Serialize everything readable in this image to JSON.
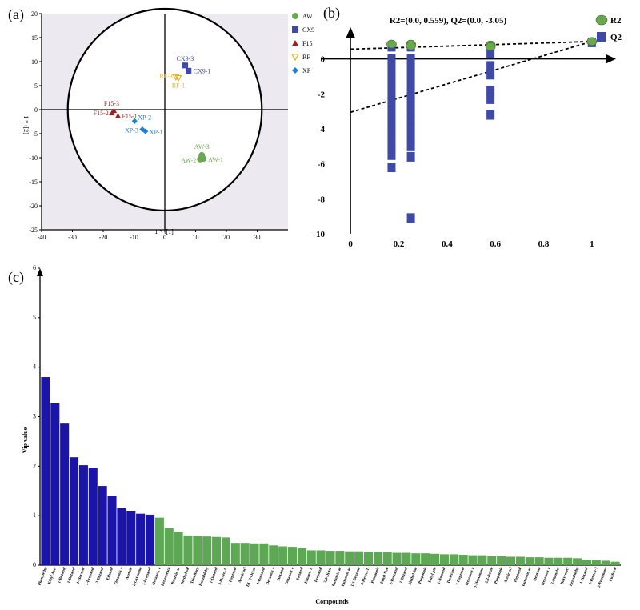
{
  "panels": {
    "a": "(a)",
    "b": "(b)",
    "c": "(c)"
  },
  "chart_data": [
    {
      "type": "scatter",
      "id": "a",
      "xlabel": "1 * t[1]",
      "ylabel": "1 * t[2]",
      "xlim": [
        -40,
        40
      ],
      "ylim": [
        -25,
        20
      ],
      "xticks": [
        -40,
        -30,
        -20,
        -10,
        0,
        10,
        20,
        30
      ],
      "yticks": [
        -25,
        -20,
        -15,
        -10,
        -5,
        0,
        5,
        10,
        15,
        20
      ],
      "ellipse": {
        "cx": 0,
        "cy": 0,
        "rx": 31.5,
        "ry": 21
      },
      "legend_position": "right",
      "colors": {
        "AW": "#6aa84f",
        "CX9": "#3f4aa8",
        "F15": "#a31f1f",
        "RF": "#e0b422",
        "XP": "#1f7fd1"
      },
      "series": [
        {
          "name": "AW",
          "marker": "circle",
          "points": [
            {
              "label": "AW-3",
              "x": 12,
              "y": -9.5
            },
            {
              "label": "AW-2",
              "x": 11.5,
              "y": -10.3
            },
            {
              "label": "AW-1",
              "x": 12.5,
              "y": -10.2
            }
          ]
        },
        {
          "name": "CX9",
          "marker": "square",
          "points": [
            {
              "label": "CX9-3",
              "x": 6.6,
              "y": 9.2
            },
            {
              "label": "CX9-1",
              "x": 7.7,
              "y": 8.1
            }
          ]
        },
        {
          "name": "F15",
          "marker": "triangle-up",
          "points": [
            {
              "label": "F15-3",
              "x": -16.5,
              "y": -0.2
            },
            {
              "label": "F15-2",
              "x": -17.2,
              "y": -0.7
            },
            {
              "label": "F15-1",
              "x": -15.2,
              "y": -1.3
            }
          ]
        },
        {
          "name": "RF",
          "marker": "triangle-down",
          "points": [
            {
              "label": "RF-3",
              "x": 3.6,
              "y": 6.8
            },
            {
              "label": "RF-1",
              "x": 4.4,
              "y": 6.6
            }
          ]
        },
        {
          "name": "XP",
          "marker": "diamond",
          "points": [
            {
              "label": "XP-2",
              "x": -9.8,
              "y": -2.4
            },
            {
              "label": "XP-3",
              "x": -7.3,
              "y": -4.1
            },
            {
              "label": "XP-1",
              "x": -6.3,
              "y": -4.5
            }
          ]
        }
      ]
    },
    {
      "type": "scatter",
      "id": "b",
      "title": "R2=(0.0, 0.559), Q2=(0.0, -3.05)",
      "xlim": [
        -0.1,
        1.1
      ],
      "ylim": [
        -10,
        2
      ],
      "xticks": [
        0,
        0.2,
        0.4,
        0.6,
        0.8,
        1
      ],
      "yticks": [
        -10,
        -8,
        -6,
        -4,
        -2,
        0
      ],
      "legend_position": "right",
      "colors": {
        "R2": "#6aa84f",
        "Q2": "#3f4aa8"
      },
      "series": [
        {
          "name": "R2",
          "marker": "circle",
          "points": [
            {
              "x": 0.17,
              "y": 0.85
            },
            {
              "x": 0.25,
              "y": 0.85
            },
            {
              "x": 0.25,
              "y": 0.75
            },
            {
              "x": 0.58,
              "y": 0.8
            },
            {
              "x": 0.58,
              "y": 0.7
            },
            {
              "x": 1,
              "y": 1
            }
          ]
        },
        {
          "name": "Q2",
          "marker": "square",
          "points": [
            {
              "x": 0.17,
              "y": 0.7
            },
            {
              "x": 0.17,
              "y": 0.0
            },
            {
              "x": 0.17,
              "y": -0.5
            },
            {
              "x": 0.17,
              "y": -1.0
            },
            {
              "x": 0.17,
              "y": -1.5
            },
            {
              "x": 0.17,
              "y": -2.0
            },
            {
              "x": 0.17,
              "y": -2.5
            },
            {
              "x": 0.17,
              "y": -3.0
            },
            {
              "x": 0.17,
              "y": -3.5
            },
            {
              "x": 0.17,
              "y": -4.0
            },
            {
              "x": 0.17,
              "y": -4.5
            },
            {
              "x": 0.17,
              "y": -5.0
            },
            {
              "x": 0.17,
              "y": -5.5
            },
            {
              "x": 0.17,
              "y": -6.2
            },
            {
              "x": 0.25,
              "y": 0.7
            },
            {
              "x": 0.25,
              "y": 0.0
            },
            {
              "x": 0.25,
              "y": -0.5
            },
            {
              "x": 0.25,
              "y": -1.0
            },
            {
              "x": 0.25,
              "y": -1.5
            },
            {
              "x": 0.25,
              "y": -2.0
            },
            {
              "x": 0.25,
              "y": -2.5
            },
            {
              "x": 0.25,
              "y": -3.0
            },
            {
              "x": 0.25,
              "y": -3.5
            },
            {
              "x": 0.25,
              "y": -4.0
            },
            {
              "x": 0.25,
              "y": -4.5
            },
            {
              "x": 0.25,
              "y": -5.0
            },
            {
              "x": 0.25,
              "y": -5.6
            },
            {
              "x": 0.25,
              "y": -9.1
            },
            {
              "x": 0.58,
              "y": 0.3
            },
            {
              "x": 0.58,
              "y": -0.4
            },
            {
              "x": 0.58,
              "y": -0.9
            },
            {
              "x": 0.58,
              "y": -1.8
            },
            {
              "x": 0.58,
              "y": -2.3
            },
            {
              "x": 0.58,
              "y": -3.2
            },
            {
              "x": 1,
              "y": 0.95
            }
          ]
        }
      ],
      "lines": [
        {
          "from": [
            0,
            0.559
          ],
          "to": [
            1,
            1
          ]
        },
        {
          "from": [
            0,
            -3.05
          ],
          "to": [
            1,
            1
          ]
        }
      ]
    },
    {
      "type": "bar",
      "id": "c",
      "xlabel": "Compounds",
      "ylabel": "Vip value",
      "ylim": [
        0,
        6
      ],
      "yticks": [
        0,
        1,
        2,
        3,
        4,
        5,
        6
      ],
      "colors": {
        "high": "#1a14a8",
        "low": "#5ea855"
      },
      "categories": [
        "Phenylethy",
        "Ethyl Acet",
        "1-Butanol",
        "1-Butanol",
        "1-Hexanol",
        "1-Propanol",
        "3-Butanol",
        "Ethanol",
        "Octanoic a",
        "Acetoin",
        "2-Octanone",
        "1-Propanol",
        "Hexanoic a",
        "Benzeneace",
        "Benzoic ac",
        "Methyl sal",
        "Trisulfury",
        "Benzaldehy",
        "1-Octanol",
        "3-Hexen-1-",
        "1-Heptanol",
        "Acetic aci",
        "DL-2-Octan",
        "1-Pentanol",
        "Decanoic a",
        "Hexanal",
        "Octanoic a",
        "Nonanal",
        "Ethane, 1,",
        "Propanal",
        "2,4-Di-ter",
        "Butanoic ac",
        "Butanoic ac",
        "1,2-Benzene",
        "4-Hexen-1-",
        "Pentanoic",
        "Ethyl Non",
        "2-Pentanol",
        "1-Butanol",
        "Methyl Alc",
        "Propanoic",
        "Ethyl pth",
        "1-Nonanol",
        "Dodecane",
        "3-Heptanol",
        "Hexanoic a",
        "3-Heptanone",
        "2,3-Butan",
        "Propanoic",
        "Acetic aci",
        "Heptanal",
        "Butanoic ac",
        "Heptane",
        "Hexanoic a",
        "2-Phenylet",
        "Butyrolact",
        "Benzaldehy",
        "1-Hexanol",
        "1-Penten-3",
        "2-Pentanone",
        "Furfural"
      ],
      "values": [
        3.8,
        3.27,
        2.86,
        2.18,
        2.02,
        1.97,
        1.6,
        1.4,
        1.15,
        1.1,
        1.04,
        1.02,
        0.96,
        0.75,
        0.68,
        0.6,
        0.59,
        0.58,
        0.57,
        0.56,
        0.45,
        0.45,
        0.44,
        0.44,
        0.4,
        0.38,
        0.37,
        0.35,
        0.3,
        0.3,
        0.29,
        0.29,
        0.28,
        0.28,
        0.27,
        0.27,
        0.26,
        0.25,
        0.25,
        0.24,
        0.24,
        0.23,
        0.22,
        0.22,
        0.21,
        0.2,
        0.2,
        0.18,
        0.18,
        0.17,
        0.17,
        0.16,
        0.16,
        0.15,
        0.15,
        0.15,
        0.14,
        0.11,
        0.1,
        0.09,
        0.07
      ],
      "high_count": 12
    }
  ]
}
